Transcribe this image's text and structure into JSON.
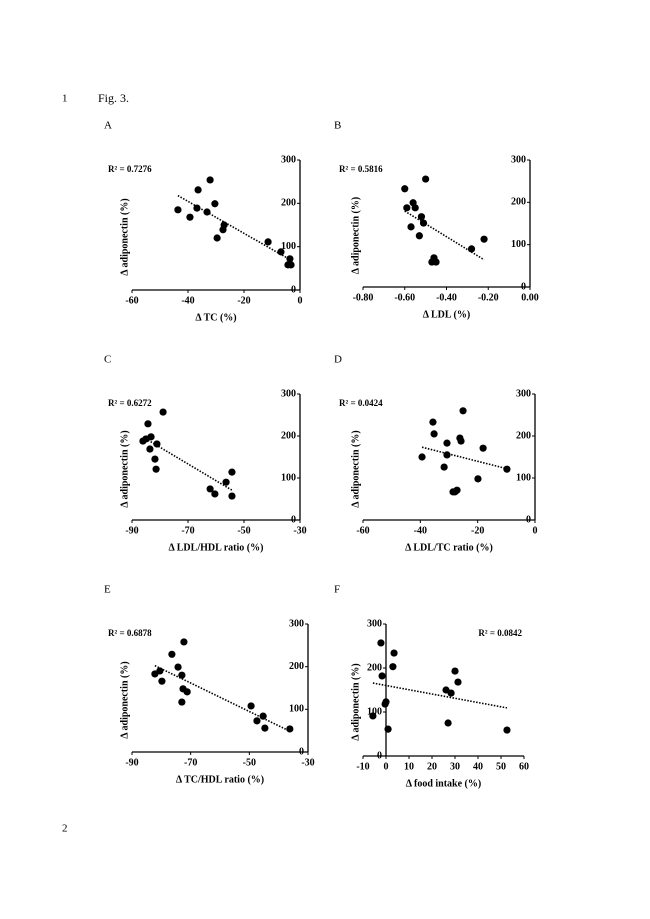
{
  "line_numbers": [
    "1",
    "2"
  ],
  "figure_label": "Fig. 3.",
  "chart_data": [
    {
      "type": "scatter",
      "panel": "A",
      "annotation": "R² = 0.7276",
      "annotation_corner": "top-left",
      "trendline": true,
      "x_label": "Δ TC (%)",
      "y_label": "Δ adiponectin (%)",
      "xlim": [
        -60,
        0
      ],
      "xticks": [
        -60,
        -40,
        -20,
        0
      ],
      "ylim": [
        0,
        300
      ],
      "yticks": [
        0,
        100,
        200,
        300
      ],
      "x": [
        -43.6,
        -39.3,
        -36.8,
        -36.4,
        -33.2,
        -32.1,
        -30.4,
        -29.6,
        -27.5,
        -27.1,
        -11.4,
        -6.8,
        -4.3,
        -3.6,
        -3.2
      ],
      "y": [
        185,
        168,
        189,
        231,
        180,
        254,
        199,
        120,
        139,
        150,
        111,
        88,
        58,
        72,
        58
      ]
    },
    {
      "type": "scatter",
      "panel": "B",
      "annotation": "R² = 0.5816",
      "annotation_corner": "top-left",
      "trendline": true,
      "x_label": "Δ LDL (%)",
      "y_label": "Δ adiponectin (%)",
      "xlim": [
        -0.8,
        0
      ],
      "xticks": [
        {
          "value": -0.8,
          "label": "-0.80"
        },
        {
          "value": -0.6,
          "label": "-0.60"
        },
        {
          "value": -0.4,
          "label": "-0.40"
        },
        {
          "value": -0.2,
          "label": "-0.20"
        },
        {
          "value": 0,
          "label": "0.00"
        }
      ],
      "ylim": [
        0,
        300
      ],
      "yticks": [
        0,
        100,
        200,
        300
      ],
      "x": [
        -0.6,
        -0.59,
        -0.56,
        -0.55,
        -0.53,
        -0.57,
        -0.52,
        -0.51,
        -0.5,
        -0.47,
        -0.46,
        -0.45,
        -0.28,
        -0.22
      ],
      "y": [
        232,
        187,
        199,
        187,
        121,
        142,
        166,
        151,
        255,
        59,
        69,
        59,
        90,
        113
      ]
    },
    {
      "type": "scatter",
      "panel": "C",
      "annotation": "R² = 0.6272",
      "annotation_corner": "top-left",
      "trendline": true,
      "x_label": "Δ LDL/HDL ratio (%)",
      "y_label": "Δ adiponectin (%)",
      "xlim": [
        -90,
        -30
      ],
      "xticks": [
        -90,
        -70,
        -50,
        -30
      ],
      "ylim": [
        0,
        300
      ],
      "yticks": [
        0,
        100,
        200,
        300
      ],
      "x": [
        -86.1,
        -85.0,
        -84.3,
        -83.2,
        -83.6,
        -81.8,
        -81.4,
        -81.1,
        -78.9,
        -62.1,
        -60.4,
        -56.4,
        -54.3,
        -54.3
      ],
      "y": [
        188,
        193,
        229,
        198,
        169,
        145,
        121,
        181,
        257,
        74,
        62,
        90,
        114,
        57
      ]
    },
    {
      "type": "scatter",
      "panel": "D",
      "annotation": "R² = 0.0424",
      "annotation_corner": "top-left",
      "trendline": true,
      "x_label": "Δ LDL/TC ratio (%)",
      "y_label": "Δ adiponectin (%)",
      "xlim": [
        -60,
        0
      ],
      "xticks": [
        -60,
        -40,
        -20,
        0
      ],
      "ylim": [
        0,
        300
      ],
      "yticks": [
        0,
        100,
        200,
        300
      ],
      "x": [
        -39.4,
        -35.6,
        -35.2,
        -30.7,
        -31.7,
        -30.7,
        -26.2,
        -25.8,
        -25.1,
        -28.6,
        -27.9,
        -27.2,
        -19.9,
        -18.1,
        -9.8
      ],
      "y": [
        150,
        233,
        205,
        183,
        126,
        155,
        195,
        188,
        260,
        67,
        67,
        71,
        98,
        171,
        121
      ]
    },
    {
      "type": "scatter",
      "panel": "E",
      "annotation": "R² = 0.6878",
      "annotation_corner": "top-left",
      "trendline": true,
      "x_label": "Δ TC/HDL ratio (%)",
      "y_label": "Δ adiponectin (%)",
      "xlim": [
        -90,
        -30
      ],
      "xticks": [
        -90,
        -70,
        -50,
        -30
      ],
      "ylim": [
        0,
        300
      ],
      "yticks": [
        0,
        100,
        200,
        300
      ],
      "x": [
        -82.2,
        -80.5,
        -79.8,
        -76.4,
        -74.3,
        -73.0,
        -72.6,
        -73.0,
        -72.3,
        -71.2,
        -49.4,
        -47.4,
        -45.3,
        -44.7,
        -36.2
      ],
      "y": [
        183,
        190,
        166,
        229,
        199,
        180,
        148,
        117,
        258,
        141,
        108,
        73,
        84,
        56,
        54
      ]
    },
    {
      "type": "scatter",
      "panel": "F",
      "annotation": "R² = 0.0842",
      "annotation_corner": "top-right",
      "trendline": true,
      "x_label": "Δ food intake (%)",
      "y_label": "Δ adiponectin (%)",
      "xlim": [
        -10,
        60
      ],
      "xticks": [
        -10,
        0,
        10,
        20,
        30,
        40,
        50,
        60
      ],
      "ylim": [
        0,
        300
      ],
      "yticks": [
        0,
        100,
        200,
        300
      ],
      "x": [
        -2.2,
        -1.7,
        -0.4,
        0,
        0.9,
        -5.7,
        3.5,
        3.0,
        26.1,
        28.3,
        27.0,
        30.0,
        31.3,
        52.6
      ],
      "y": [
        257,
        182,
        118,
        123,
        61,
        91,
        234,
        203,
        150,
        143,
        75,
        193,
        168,
        59
      ]
    }
  ]
}
